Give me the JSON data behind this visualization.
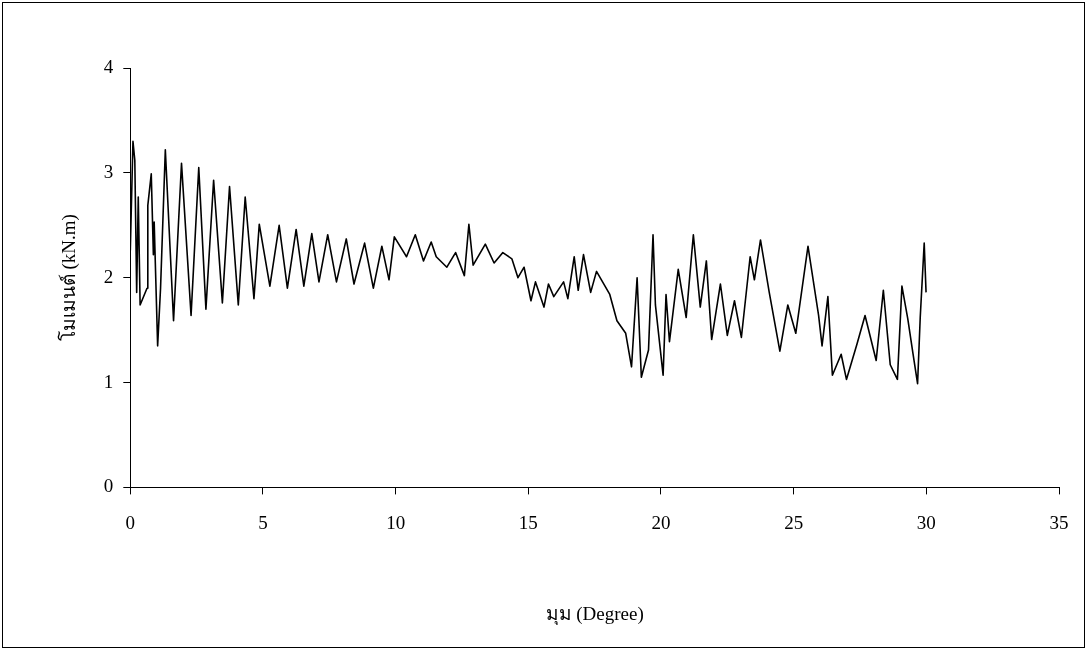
{
  "chart_data": {
    "type": "line",
    "xlabel": "มุม (Degree)",
    "ylabel": "โมเมนต์ (kN.m)",
    "xlim": [
      0,
      35
    ],
    "xticks": [
      0,
      5,
      10,
      15,
      20,
      25,
      30,
      35
    ],
    "ylim": [
      0,
      4
    ],
    "yticks": [
      0,
      1,
      2,
      3,
      4
    ],
    "grid": false,
    "legend": false,
    "marker": "none",
    "line_style": "solid",
    "series": [
      {
        "color": "#000000",
        "x": [
          0,
          0.1,
          0.17,
          0.24,
          0.3,
          0.37,
          0.63,
          0.66,
          0.79,
          0.87,
          0.9,
          1.03,
          1.14,
          1.32,
          1.63,
          1.93,
          2.29,
          2.58,
          2.85,
          3.14,
          3.47,
          3.74,
          4.07,
          4.33,
          4.66,
          4.86,
          5.26,
          5.61,
          5.92,
          6.25,
          6.54,
          6.84,
          7.11,
          7.44,
          7.77,
          8.14,
          8.43,
          8.83,
          9.16,
          9.48,
          9.75,
          9.95,
          10.41,
          10.74,
          11.05,
          11.34,
          11.53,
          11.93,
          12.26,
          12.59,
          12.76,
          12.92,
          13.38,
          13.71,
          14.04,
          14.38,
          14.61,
          14.84,
          15.1,
          15.27,
          15.59,
          15.76,
          15.96,
          16.33,
          16.49,
          16.73,
          16.88,
          17.08,
          17.35,
          17.57,
          18.07,
          18.34,
          18.67,
          18.89,
          19.1,
          19.26,
          19.53,
          19.7,
          19.79,
          20.08,
          20.19,
          20.32,
          20.65,
          20.95,
          21.22,
          21.48,
          21.71,
          21.91,
          22.24,
          22.5,
          22.77,
          23.03,
          23.36,
          23.52,
          23.75,
          24.08,
          24.48,
          24.78,
          25.08,
          25.54,
          25.94,
          26.07,
          26.29,
          26.46,
          26.79,
          26.99,
          27.39,
          27.69,
          28.11,
          28.38,
          28.64,
          28.91,
          29.08,
          29.3,
          29.5,
          29.67,
          29.77,
          29.92,
          29.99
        ],
        "values": [
          2.26,
          3.3,
          3.12,
          1.86,
          2.77,
          1.74,
          1.9,
          2.69,
          2.99,
          2.22,
          2.53,
          1.35,
          1.9,
          3.22,
          1.59,
          3.09,
          1.64,
          3.05,
          1.7,
          2.93,
          1.76,
          2.87,
          1.74,
          2.77,
          1.8,
          2.51,
          1.92,
          2.5,
          1.9,
          2.46,
          1.92,
          2.42,
          1.96,
          2.41,
          1.96,
          2.37,
          1.94,
          2.33,
          1.9,
          2.3,
          1.98,
          2.39,
          2.2,
          2.41,
          2.16,
          2.34,
          2.2,
          2.1,
          2.24,
          2.02,
          2.51,
          2.12,
          2.32,
          2.14,
          2.24,
          2.18,
          2,
          2.1,
          1.78,
          1.96,
          1.72,
          1.94,
          1.82,
          1.96,
          1.8,
          2.2,
          1.88,
          2.22,
          1.86,
          2.06,
          1.84,
          1.59,
          1.47,
          1.15,
          2,
          1.05,
          1.31,
          2.41,
          1.74,
          1.07,
          1.84,
          1.39,
          2.08,
          1.62,
          2.41,
          1.72,
          2.16,
          1.41,
          1.94,
          1.45,
          1.78,
          1.43,
          2.2,
          1.98,
          2.36,
          1.86,
          1.3,
          1.74,
          1.47,
          2.3,
          1.64,
          1.35,
          1.82,
          1.07,
          1.27,
          1.03,
          1.37,
          1.64,
          1.21,
          1.88,
          1.17,
          1.03,
          1.92,
          1.61,
          1.27,
          0.99,
          1.62,
          2.33,
          1.86
        ]
      }
    ]
  }
}
